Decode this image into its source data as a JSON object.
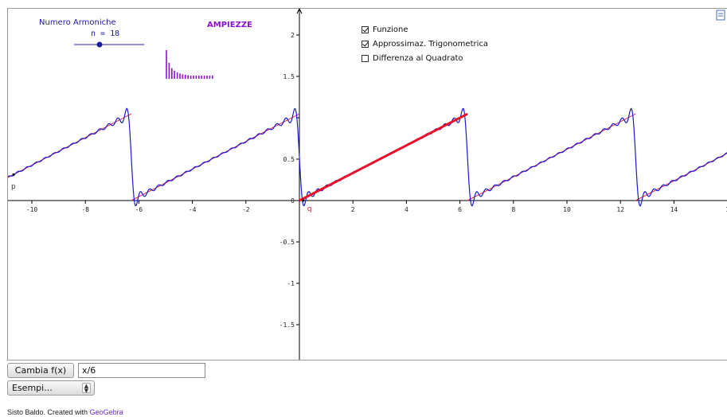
{
  "slider": {
    "label": "Numero Armoniche",
    "value_text": "n = 18",
    "n": 18
  },
  "amplitudes": {
    "title": "AMPIEZZE"
  },
  "checkboxes": [
    {
      "label": "Funzione",
      "checked": true
    },
    {
      "label": "Approssimaz. Trigonometrica",
      "checked": true
    },
    {
      "label": "Differenza al Quadrato",
      "checked": false
    }
  ],
  "axes": {
    "x_ticks": [
      "-10",
      "-8",
      "-6",
      "-4",
      "-2",
      "2",
      "4",
      "6",
      "8",
      "10",
      "12",
      "14",
      "1"
    ],
    "y_ticks": [
      "2",
      "1.5",
      "0.5",
      "0",
      "-0.5",
      "-1",
      "-1.5"
    ]
  },
  "points": {
    "p_label": "p",
    "q_label": "q"
  },
  "controls": {
    "button_label": "Cambia f(x)",
    "function_value": "x/6",
    "select_value": "Esempi..."
  },
  "credits": {
    "text": "Sisto Baldo. Created with ",
    "link": "GeoGebra"
  },
  "colors": {
    "function": "#e0304a",
    "approximation": "#1a1ad8",
    "amplitudes": "#8b12d6",
    "highlight": "#e8102a"
  },
  "icons": {
    "corner": "graphics-view-icon",
    "select_arrow": "updown-chevron-icon"
  }
}
